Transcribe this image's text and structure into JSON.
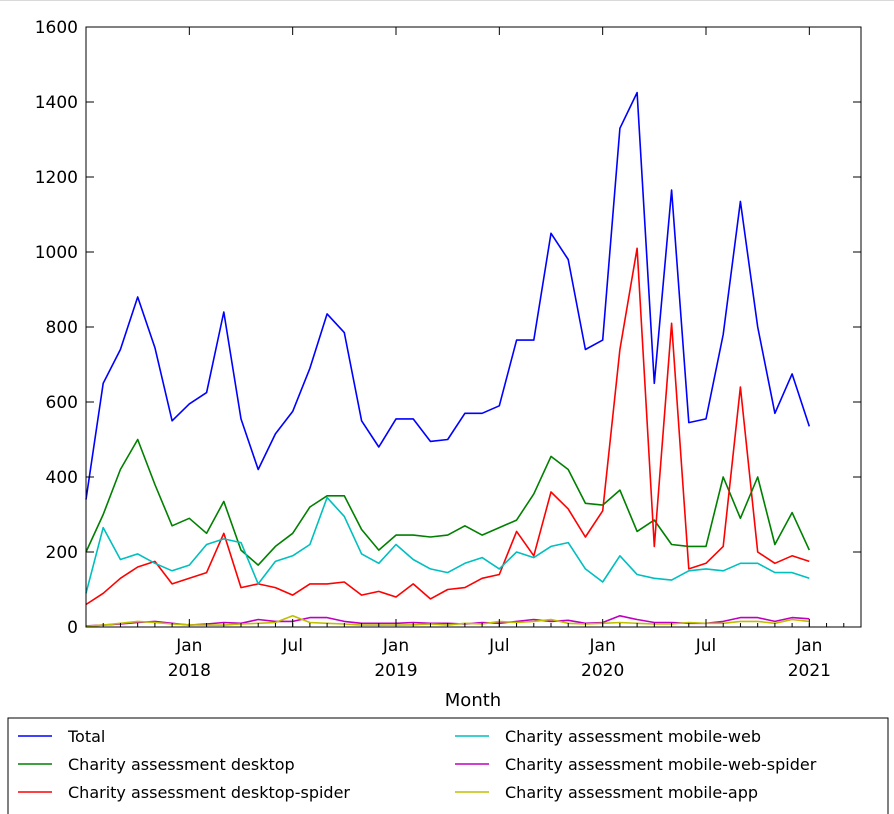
{
  "chart_data": {
    "type": "line",
    "title": "",
    "xlabel": "Month",
    "ylabel": "",
    "ylim": [
      0,
      1600
    ],
    "yticks": [
      0,
      200,
      400,
      600,
      800,
      1000,
      1200,
      1400,
      1600
    ],
    "xlim": [
      "2017-07",
      "2021-04"
    ],
    "xticks": [
      {
        "month": "2018-01",
        "label": "Jan",
        "year": "2018"
      },
      {
        "month": "2018-07",
        "label": "Jul",
        "year": ""
      },
      {
        "month": "2019-01",
        "label": "Jan",
        "year": "2019"
      },
      {
        "month": "2019-07",
        "label": "Jul",
        "year": ""
      },
      {
        "month": "2020-01",
        "label": "Jan",
        "year": "2020"
      },
      {
        "month": "2020-07",
        "label": "Jul",
        "year": ""
      },
      {
        "month": "2021-01",
        "label": "Jan",
        "year": "2021"
      }
    ],
    "grid": false,
    "legend": "bottom",
    "x": [
      "2017-07",
      "2017-08",
      "2017-09",
      "2017-10",
      "2017-11",
      "2017-12",
      "2018-01",
      "2018-02",
      "2018-03",
      "2018-04",
      "2018-05",
      "2018-06",
      "2018-07",
      "2018-08",
      "2018-09",
      "2018-10",
      "2018-11",
      "2018-12",
      "2019-01",
      "2019-02",
      "2019-03",
      "2019-04",
      "2019-05",
      "2019-06",
      "2019-07",
      "2019-08",
      "2019-09",
      "2019-10",
      "2019-11",
      "2019-12",
      "2020-01",
      "2020-02",
      "2020-03",
      "2020-04",
      "2020-05",
      "2020-06",
      "2020-07",
      "2020-08",
      "2020-09",
      "2020-10",
      "2020-11",
      "2020-12",
      "2021-01",
      "2021-02",
      "2021-03",
      "2021-04"
    ],
    "series": [
      {
        "name": "Total",
        "color": "#0000ff",
        "values": [
          340,
          650,
          740,
          880,
          745,
          550,
          595,
          625,
          840,
          555,
          420,
          515,
          575,
          690,
          835,
          785,
          550,
          480,
          555,
          555,
          495,
          500,
          570,
          570,
          590,
          765,
          765,
          1050,
          980,
          740,
          765,
          1330,
          1425,
          650,
          1165,
          545,
          555,
          780,
          1135,
          800,
          570,
          675,
          535,
          null,
          null,
          null
        ]
      },
      {
        "name": "Charity assessment desktop",
        "color": "#008000",
        "values": [
          200,
          300,
          420,
          500,
          380,
          270,
          290,
          250,
          335,
          205,
          165,
          215,
          250,
          320,
          350,
          350,
          260,
          205,
          245,
          245,
          240,
          245,
          270,
          245,
          265,
          285,
          355,
          455,
          420,
          330,
          325,
          365,
          255,
          285,
          220,
          215,
          215,
          400,
          290,
          400,
          220,
          305,
          205,
          null,
          null,
          null
        ]
      },
      {
        "name": "Charity assessment desktop-spider",
        "color": "#ff0000",
        "values": [
          60,
          90,
          130,
          160,
          175,
          115,
          130,
          145,
          250,
          105,
          115,
          105,
          85,
          115,
          115,
          120,
          85,
          95,
          80,
          115,
          75,
          100,
          105,
          130,
          140,
          255,
          190,
          360,
          315,
          240,
          310,
          740,
          1010,
          215,
          810,
          155,
          170,
          215,
          640,
          200,
          170,
          190,
          175,
          null,
          null,
          null
        ]
      },
      {
        "name": "Charity assessment mobile-web",
        "color": "#00bfbf",
        "values": [
          90,
          265,
          180,
          195,
          170,
          150,
          165,
          220,
          235,
          225,
          115,
          175,
          190,
          220,
          345,
          295,
          195,
          170,
          220,
          180,
          155,
          145,
          170,
          185,
          155,
          200,
          185,
          215,
          225,
          155,
          120,
          190,
          140,
          130,
          125,
          150,
          155,
          150,
          170,
          170,
          145,
          145,
          130,
          null,
          null,
          null
        ]
      },
      {
        "name": "Charity assessment mobile-web-spider",
        "color": "#bf00bf",
        "values": [
          3,
          5,
          8,
          12,
          15,
          10,
          5,
          8,
          12,
          10,
          20,
          15,
          15,
          25,
          25,
          15,
          10,
          10,
          10,
          12,
          10,
          10,
          8,
          12,
          10,
          15,
          20,
          15,
          18,
          10,
          12,
          30,
          20,
          12,
          12,
          10,
          10,
          15,
          25,
          25,
          15,
          25,
          22,
          null,
          null,
          null
        ]
      },
      {
        "name": "Charity assessment mobile-app",
        "color": "#bfbf00",
        "values": [
          2,
          5,
          10,
          15,
          12,
          8,
          6,
          5,
          5,
          8,
          10,
          12,
          30,
          12,
          10,
          8,
          5,
          5,
          5,
          6,
          8,
          5,
          10,
          8,
          15,
          12,
          15,
          20,
          10,
          8,
          10,
          12,
          10,
          8,
          8,
          12,
          10,
          10,
          15,
          15,
          10,
          20,
          15,
          null,
          null,
          null
        ]
      }
    ]
  }
}
